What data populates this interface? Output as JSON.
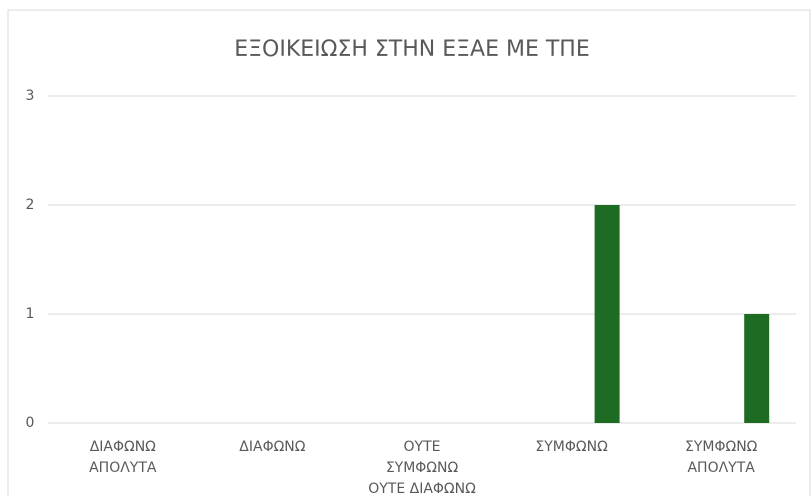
{
  "chart_data": {
    "type": "bar",
    "title": "ΕΞΟΙΚΕΙΩΣΗ ΣΤΗΝ ΕΞΑΕ ΜΕ ΤΠΕ",
    "categories": [
      "ΔΙΑΦΩΝΩ ΑΠΟΛΥΤΑ",
      "ΔΙΑΦΩΝΩ",
      "ΟΥΤΕ ΣΥΜΦΩΝΩ ΟΥΤΕ ΔΙΑΦΩΝΩ",
      "ΣΥΜΦΩΝΩ",
      "ΣΥΜΦΩΝΩ ΑΠΟΛΥΤΑ"
    ],
    "values": [
      0,
      0,
      0,
      2,
      1
    ],
    "color": "#1e6b24",
    "ylim": [
      0,
      3
    ],
    "yticks": [
      0,
      1,
      2,
      3
    ],
    "grid": true
  }
}
